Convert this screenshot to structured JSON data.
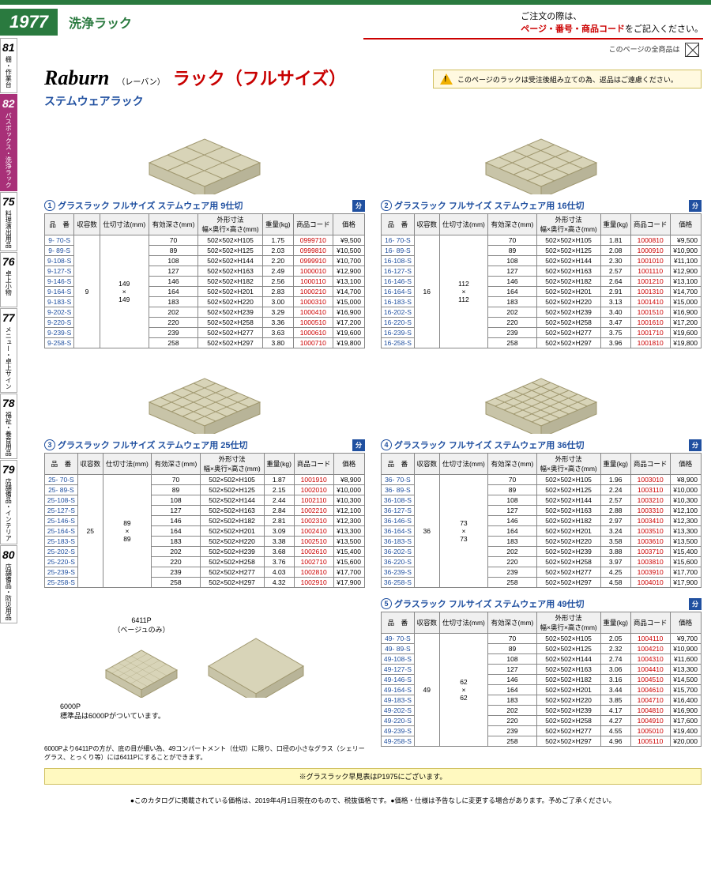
{
  "page_number": "1977",
  "category": "洗浄ラック",
  "order_note_line1": "ご注文の際は、",
  "order_note_line2a": "ページ・番号・商品コード",
  "order_note_line2b": "をご記入ください。",
  "all_products_note": "このページの全商品は",
  "sidebar": [
    {
      "num": "81",
      "label": "棚・作業台"
    },
    {
      "num": "82",
      "label": "バスボックス・洗浄ラック"
    },
    {
      "num": "75",
      "label": "料理演出用品"
    },
    {
      "num": "76",
      "label": "卓上小物"
    },
    {
      "num": "77",
      "label": "メニュー・卓上サイン"
    },
    {
      "num": "78",
      "label": "福祉・養育用品"
    },
    {
      "num": "79",
      "label": "店舗備品・インテリア"
    },
    {
      "num": "80",
      "label": "店舗備品・防災用品"
    }
  ],
  "brand": "Raburn",
  "brand_kana": "（レーバン）",
  "product_title": "ラック（フルサイズ）",
  "subtitle": "ステムウェアラック",
  "warning_text": "このページのラックは受注後組み立ての為、返品はご遠慮ください。",
  "headers": {
    "item": "品　番",
    "cap": "収容数",
    "partition": "仕切寸法(mm)",
    "depth": "有効深さ(mm)",
    "outer": "外形寸法\n幅×奥行×高さ(mm)",
    "weight": "重量(kg)",
    "code": "商品コード",
    "price": "価格"
  },
  "tables": [
    {
      "num": "1",
      "title": "グラスラック フルサイズ ステムウェア用 9仕切",
      "badge": "分",
      "cap": "9",
      "partition": "149\n×\n149",
      "rows": [
        {
          "item": "9- 70-S",
          "depth": "70",
          "outer": "502×502×H105",
          "weight": "1.75",
          "code": "0999710",
          "price": "¥9,500"
        },
        {
          "item": "9- 89-S",
          "depth": "89",
          "outer": "502×502×H125",
          "weight": "2.03",
          "code": "0999810",
          "price": "¥10,500"
        },
        {
          "item": "9-108-S",
          "depth": "108",
          "outer": "502×502×H144",
          "weight": "2.20",
          "code": "0999910",
          "price": "¥10,700"
        },
        {
          "item": "9-127-S",
          "depth": "127",
          "outer": "502×502×H163",
          "weight": "2.49",
          "code": "1000010",
          "price": "¥12,900"
        },
        {
          "item": "9-146-S",
          "depth": "146",
          "outer": "502×502×H182",
          "weight": "2.56",
          "code": "1000110",
          "price": "¥13,100"
        },
        {
          "item": "9-164-S",
          "depth": "164",
          "outer": "502×502×H201",
          "weight": "2.83",
          "code": "1000210",
          "price": "¥14,700"
        },
        {
          "item": "9-183-S",
          "depth": "183",
          "outer": "502×502×H220",
          "weight": "3.00",
          "code": "1000310",
          "price": "¥15,000"
        },
        {
          "item": "9-202-S",
          "depth": "202",
          "outer": "502×502×H239",
          "weight": "3.29",
          "code": "1000410",
          "price": "¥16,900"
        },
        {
          "item": "9-220-S",
          "depth": "220",
          "outer": "502×502×H258",
          "weight": "3.36",
          "code": "1000510",
          "price": "¥17,200"
        },
        {
          "item": "9-239-S",
          "depth": "239",
          "outer": "502×502×H277",
          "weight": "3.63",
          "code": "1000610",
          "price": "¥19,600"
        },
        {
          "item": "9-258-S",
          "depth": "258",
          "outer": "502×502×H297",
          "weight": "3.80",
          "code": "1000710",
          "price": "¥19,800"
        }
      ]
    },
    {
      "num": "2",
      "title": "グラスラック フルサイズ ステムウェア用 16仕切",
      "badge": "分",
      "cap": "16",
      "partition": "112\n×\n112",
      "rows": [
        {
          "item": "16- 70-S",
          "depth": "70",
          "outer": "502×502×H105",
          "weight": "1.81",
          "code": "1000810",
          "price": "¥9,500"
        },
        {
          "item": "16- 89-S",
          "depth": "89",
          "outer": "502×502×H125",
          "weight": "2.08",
          "code": "1000910",
          "price": "¥10,900"
        },
        {
          "item": "16-108-S",
          "depth": "108",
          "outer": "502×502×H144",
          "weight": "2.30",
          "code": "1001010",
          "price": "¥11,100"
        },
        {
          "item": "16-127-S",
          "depth": "127",
          "outer": "502×502×H163",
          "weight": "2.57",
          "code": "1001110",
          "price": "¥12,900"
        },
        {
          "item": "16-146-S",
          "depth": "146",
          "outer": "502×502×H182",
          "weight": "2.64",
          "code": "1001210",
          "price": "¥13,100"
        },
        {
          "item": "16-164-S",
          "depth": "164",
          "outer": "502×502×H201",
          "weight": "2.91",
          "code": "1001310",
          "price": "¥14,700"
        },
        {
          "item": "16-183-S",
          "depth": "183",
          "outer": "502×502×H220",
          "weight": "3.13",
          "code": "1001410",
          "price": "¥15,000"
        },
        {
          "item": "16-202-S",
          "depth": "202",
          "outer": "502×502×H239",
          "weight": "3.40",
          "code": "1001510",
          "price": "¥16,900"
        },
        {
          "item": "16-220-S",
          "depth": "220",
          "outer": "502×502×H258",
          "weight": "3.47",
          "code": "1001610",
          "price": "¥17,200"
        },
        {
          "item": "16-239-S",
          "depth": "239",
          "outer": "502×502×H277",
          "weight": "3.75",
          "code": "1001710",
          "price": "¥19,600"
        },
        {
          "item": "16-258-S",
          "depth": "258",
          "outer": "502×502×H297",
          "weight": "3.96",
          "code": "1001810",
          "price": "¥19,800"
        }
      ]
    },
    {
      "num": "3",
      "title": "グラスラック フルサイズ ステムウェア用 25仕切",
      "badge": "分",
      "cap": "25",
      "partition": "89\n×\n89",
      "rows": [
        {
          "item": "25- 70-S",
          "depth": "70",
          "outer": "502×502×H105",
          "weight": "1.87",
          "code": "1001910",
          "price": "¥8,900"
        },
        {
          "item": "25- 89-S",
          "depth": "89",
          "outer": "502×502×H125",
          "weight": "2.15",
          "code": "1002010",
          "price": "¥10,000"
        },
        {
          "item": "25-108-S",
          "depth": "108",
          "outer": "502×502×H144",
          "weight": "2.44",
          "code": "1002110",
          "price": "¥10,300"
        },
        {
          "item": "25-127-S",
          "depth": "127",
          "outer": "502×502×H163",
          "weight": "2.84",
          "code": "1002210",
          "price": "¥12,100"
        },
        {
          "item": "25-146-S",
          "depth": "146",
          "outer": "502×502×H182",
          "weight": "2.81",
          "code": "1002310",
          "price": "¥12,300"
        },
        {
          "item": "25-164-S",
          "depth": "164",
          "outer": "502×502×H201",
          "weight": "3.09",
          "code": "1002410",
          "price": "¥13,300"
        },
        {
          "item": "25-183-S",
          "depth": "183",
          "outer": "502×502×H220",
          "weight": "3.38",
          "code": "1002510",
          "price": "¥13,500"
        },
        {
          "item": "25-202-S",
          "depth": "202",
          "outer": "502×502×H239",
          "weight": "3.68",
          "code": "1002610",
          "price": "¥15,400"
        },
        {
          "item": "25-220-S",
          "depth": "220",
          "outer": "502×502×H258",
          "weight": "3.76",
          "code": "1002710",
          "price": "¥15,600"
        },
        {
          "item": "25-239-S",
          "depth": "239",
          "outer": "502×502×H277",
          "weight": "4.03",
          "code": "1002810",
          "price": "¥17,700"
        },
        {
          "item": "25-258-S",
          "depth": "258",
          "outer": "502×502×H297",
          "weight": "4.32",
          "code": "1002910",
          "price": "¥17,900"
        }
      ]
    },
    {
      "num": "4",
      "title": "グラスラック フルサイズ ステムウェア用 36仕切",
      "badge": "分",
      "cap": "36",
      "partition": "73\n×\n73",
      "rows": [
        {
          "item": "36- 70-S",
          "depth": "70",
          "outer": "502×502×H105",
          "weight": "1.96",
          "code": "1003010",
          "price": "¥8,900"
        },
        {
          "item": "36- 89-S",
          "depth": "89",
          "outer": "502×502×H125",
          "weight": "2.24",
          "code": "1003110",
          "price": "¥10,000"
        },
        {
          "item": "36-108-S",
          "depth": "108",
          "outer": "502×502×H144",
          "weight": "2.57",
          "code": "1003210",
          "price": "¥10,300"
        },
        {
          "item": "36-127-S",
          "depth": "127",
          "outer": "502×502×H163",
          "weight": "2.88",
          "code": "1003310",
          "price": "¥12,100"
        },
        {
          "item": "36-146-S",
          "depth": "146",
          "outer": "502×502×H182",
          "weight": "2.97",
          "code": "1003410",
          "price": "¥12,300"
        },
        {
          "item": "36-164-S",
          "depth": "164",
          "outer": "502×502×H201",
          "weight": "3.24",
          "code": "1003510",
          "price": "¥13,300"
        },
        {
          "item": "36-183-S",
          "depth": "183",
          "outer": "502×502×H220",
          "weight": "3.58",
          "code": "1003610",
          "price": "¥13,500"
        },
        {
          "item": "36-202-S",
          "depth": "202",
          "outer": "502×502×H239",
          "weight": "3.88",
          "code": "1003710",
          "price": "¥15,400"
        },
        {
          "item": "36-220-S",
          "depth": "220",
          "outer": "502×502×H258",
          "weight": "3.97",
          "code": "1003810",
          "price": "¥15,600"
        },
        {
          "item": "36-239-S",
          "depth": "239",
          "outer": "502×502×H277",
          "weight": "4.25",
          "code": "1003910",
          "price": "¥17,700"
        },
        {
          "item": "36-258-S",
          "depth": "258",
          "outer": "502×502×H297",
          "weight": "4.58",
          "code": "1004010",
          "price": "¥17,900"
        }
      ]
    },
    {
      "num": "5",
      "title": "グラスラック フルサイズ ステムウェア用 49仕切",
      "badge": "分",
      "cap": "49",
      "partition": "62\n×\n62",
      "rows": [
        {
          "item": "49- 70-S",
          "depth": "70",
          "outer": "502×502×H105",
          "weight": "2.05",
          "code": "1004110",
          "price": "¥9,700"
        },
        {
          "item": "49- 89-S",
          "depth": "89",
          "outer": "502×502×H125",
          "weight": "2.32",
          "code": "1004210",
          "price": "¥10,900"
        },
        {
          "item": "49-108-S",
          "depth": "108",
          "outer": "502×502×H144",
          "weight": "2.74",
          "code": "1004310",
          "price": "¥11,600"
        },
        {
          "item": "49-127-S",
          "depth": "127",
          "outer": "502×502×H163",
          "weight": "3.06",
          "code": "1004410",
          "price": "¥13,300"
        },
        {
          "item": "49-146-S",
          "depth": "146",
          "outer": "502×502×H182",
          "weight": "3.16",
          "code": "1004510",
          "price": "¥14,500"
        },
        {
          "item": "49-164-S",
          "depth": "164",
          "outer": "502×502×H201",
          "weight": "3.44",
          "code": "1004610",
          "price": "¥15,700"
        },
        {
          "item": "49-183-S",
          "depth": "183",
          "outer": "502×502×H220",
          "weight": "3.85",
          "code": "1004710",
          "price": "¥16,400"
        },
        {
          "item": "49-202-S",
          "depth": "202",
          "outer": "502×502×H239",
          "weight": "4.17",
          "code": "1004810",
          "price": "¥16,900"
        },
        {
          "item": "49-220-S",
          "depth": "220",
          "outer": "502×502×H258",
          "weight": "4.27",
          "code": "1004910",
          "price": "¥17,600"
        },
        {
          "item": "49-239-S",
          "depth": "239",
          "outer": "502×502×H277",
          "weight": "4.55",
          "code": "1005010",
          "price": "¥19,400"
        },
        {
          "item": "49-258-S",
          "depth": "258",
          "outer": "502×502×H297",
          "weight": "4.96",
          "code": "1005110",
          "price": "¥20,000"
        }
      ]
    }
  ],
  "bottom_labels": {
    "p6411": "6411P",
    "p6411_note": "（ベージュのみ）",
    "p6000": "6000P",
    "p6000_note": "標準品は6000Pがついています。",
    "detail_note": "6000Pより6411Pの方が、底の目が細い為、49コンパートメント（仕切）に限り、口径の小さなグラス（シェリーグラス、とっくり等）には6411Pにすることができます。",
    "yellow_note": "※グラスラック早見表はP1975にございます。"
  },
  "footer": "●このカタログに掲載されている価格は、2019年4月1日現在のもので、税抜価格です。●価格・仕様は予告なしに変更する場合があります。予めご了承ください。"
}
